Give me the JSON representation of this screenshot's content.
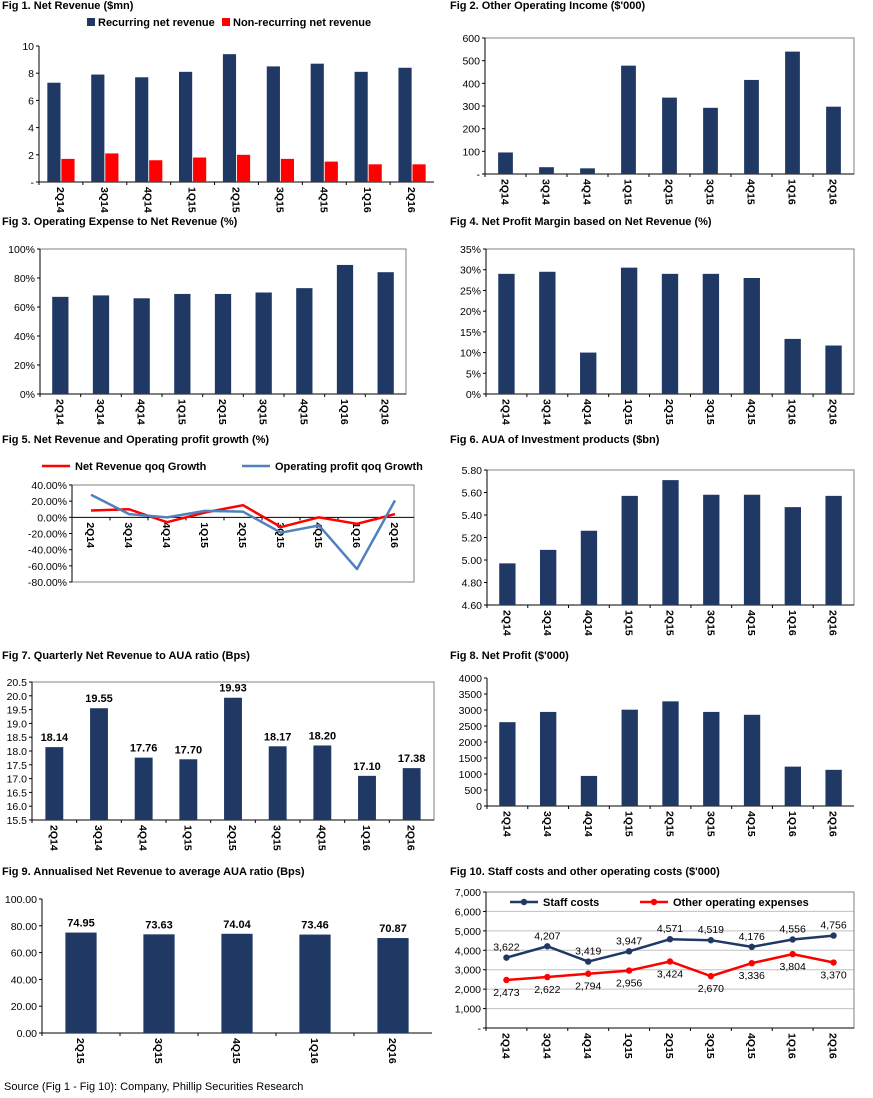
{
  "charts": [
    {
      "title": "Fig 1. Net Revenue ($mn)",
      "chart_data": {
        "type": "bar",
        "categories": [
          "2Q14",
          "3Q14",
          "4Q14",
          "1Q15",
          "2Q15",
          "3Q15",
          "4Q15",
          "1Q16",
          "2Q16"
        ],
        "series": [
          {
            "name": "Recurring net revenue",
            "values": [
              7.3,
              7.9,
              7.7,
              8.1,
              9.4,
              8.5,
              8.7,
              8.1,
              8.4
            ],
            "color": "#1f3864"
          },
          {
            "name": "Non-recurring net revenue",
            "values": [
              1.7,
              2.1,
              1.6,
              1.8,
              2.0,
              1.7,
              1.5,
              1.3,
              1.3
            ],
            "color": "#ff0000"
          }
        ],
        "ylim": [
          0,
          10
        ],
        "yticks": [
          "-",
          "2",
          "4",
          "6",
          "8",
          "10"
        ],
        "legend": "top",
        "plot_border": false
      }
    },
    {
      "title": "Fig 2. Other Operating Income ($'000)",
      "chart_data": {
        "type": "bar",
        "categories": [
          "2Q14",
          "3Q14",
          "4Q14",
          "1Q15",
          "2Q15",
          "3Q15",
          "4Q15",
          "1Q16",
          "2Q16"
        ],
        "series": [
          {
            "values": [
              95,
              30,
              25,
              478,
              337,
              292,
              415,
              540,
              297
            ],
            "color": "#1f3864"
          }
        ],
        "ylim": [
          0,
          600
        ],
        "yticks": [
          "-",
          "100",
          "200",
          "300",
          "400",
          "500",
          "600"
        ],
        "plot_border": true
      }
    },
    {
      "title": "Fig 3. Operating Expense to Net Revenue (%)",
      "chart_data": {
        "type": "bar",
        "categories": [
          "2Q14",
          "3Q14",
          "4Q14",
          "1Q15",
          "2Q15",
          "3Q15",
          "4Q15",
          "1Q16",
          "2Q16"
        ],
        "series": [
          {
            "values": [
              67,
              68,
              66,
              69,
              69,
              70,
              73,
              89,
              84
            ],
            "color": "#1f3864"
          }
        ],
        "ylim": [
          0,
          100
        ],
        "yticks": [
          "0%",
          "20%",
          "40%",
          "60%",
          "80%",
          "100%"
        ],
        "plot_border": true
      }
    },
    {
      "title": "Fig 4. Net Profit Margin based on Net Revenue (%)",
      "chart_data": {
        "type": "bar",
        "categories": [
          "2Q14",
          "3Q14",
          "4Q14",
          "1Q15",
          "2Q15",
          "3Q15",
          "4Q15",
          "1Q16",
          "2Q16"
        ],
        "series": [
          {
            "values": [
              29,
              29.5,
              10,
              30.5,
              29,
              29,
              28,
              13.3,
              11.7
            ],
            "color": "#1f3864"
          }
        ],
        "ylim": [
          0,
          35
        ],
        "yticks": [
          "0%",
          "5%",
          "10%",
          "15%",
          "20%",
          "25%",
          "30%",
          "35%"
        ],
        "plot_border": true
      }
    },
    {
      "title": "Fig 5. Net Revenue and Operating profit growth (%)",
      "chart_data": {
        "type": "line",
        "categories": [
          "2Q14",
          "3Q14",
          "4Q14",
          "1Q15",
          "2Q15",
          "3Q15",
          "4Q15",
          "1Q16",
          "2Q16"
        ],
        "series": [
          {
            "name": "Net Revenue qoq Growth",
            "values": [
              8.5,
              10,
              -6,
              6,
              15,
              -12,
              0,
              -8,
              4
            ],
            "color": "#ff0000"
          },
          {
            "name": "Operating profit qoq Growth",
            "values": [
              28,
              4,
              0,
              8,
              7,
              -19,
              -10,
              -64,
              21
            ],
            "color": "#4f81bd"
          }
        ],
        "ylim": [
          -80,
          40
        ],
        "yticks": [
          "-80.00%",
          "-60.00%",
          "-40.00%",
          "-20.00%",
          "0.00%",
          "20.00%",
          "40.00%"
        ],
        "legend": "top",
        "plot_border": true
      }
    },
    {
      "title": "Fig 6. AUA of Investment products ($bn)",
      "chart_data": {
        "type": "bar",
        "categories": [
          "2Q14",
          "3Q14",
          "4Q14",
          "1Q15",
          "2Q15",
          "3Q15",
          "4Q15",
          "1Q16",
          "2Q16"
        ],
        "series": [
          {
            "values": [
              4.97,
              5.09,
              5.26,
              5.57,
              5.71,
              5.58,
              5.58,
              5.47,
              5.57
            ],
            "color": "#1f3864"
          }
        ],
        "ylim": [
          4.6,
          5.8
        ],
        "yticks": [
          "4.60",
          "4.80",
          "5.00",
          "5.20",
          "5.40",
          "5.60",
          "5.80"
        ],
        "plot_border": true
      }
    },
    {
      "title": "Fig 7. Quarterly Net Revenue to AUA ratio (Bps)",
      "chart_data": {
        "type": "bar",
        "categories": [
          "2Q14",
          "3Q14",
          "4Q14",
          "1Q15",
          "2Q15",
          "3Q15",
          "4Q15",
          "1Q16",
          "2Q16"
        ],
        "series": [
          {
            "values": [
              18.14,
              19.55,
              17.76,
              17.7,
              19.93,
              18.17,
              18.2,
              17.1,
              17.38
            ],
            "color": "#1f3864"
          }
        ],
        "data_labels": [
          "18.14",
          "19.55",
          "17.76",
          "17.70",
          "19.93",
          "18.17",
          "18.20",
          "17.10",
          "17.38"
        ],
        "ylim": [
          15.5,
          20.5
        ],
        "yticks": [
          "15.5",
          "16.0",
          "16.5",
          "17.0",
          "17.5",
          "18.0",
          "18.5",
          "19.0",
          "19.5",
          "20.0",
          "20.5"
        ],
        "plot_border": true
      }
    },
    {
      "title": "Fig 8. Net Profit ($'000)",
      "chart_data": {
        "type": "bar",
        "categories": [
          "2Q14",
          "3Q14",
          "4Q14",
          "1Q15",
          "2Q15",
          "3Q15",
          "4Q15",
          "1Q16",
          "2Q16"
        ],
        "series": [
          {
            "values": [
              2620,
              2940,
              940,
              3010,
              3270,
              2940,
              2850,
              1230,
              1130
            ],
            "color": "#1f3864"
          }
        ],
        "ylim": [
          0,
          4000
        ],
        "yticks": [
          "0",
          "500",
          "1000",
          "1500",
          "2000",
          "2500",
          "3000",
          "3500",
          "4000"
        ],
        "plot_border": false
      }
    },
    {
      "title": "Fig 9. Annualised Net Revenue to average AUA ratio (Bps)",
      "chart_data": {
        "type": "bar",
        "categories": [
          "2Q15",
          "3Q15",
          "4Q15",
          "1Q16",
          "2Q16"
        ],
        "series": [
          {
            "values": [
              74.95,
              73.63,
              74.04,
              73.46,
              70.87
            ],
            "color": "#1f3864"
          }
        ],
        "data_labels": [
          "74.95",
          "73.63",
          "74.04",
          "73.46",
          "70.87"
        ],
        "ylim": [
          0,
          100
        ],
        "yticks": [
          "0.00",
          "20.00",
          "40.00",
          "60.00",
          "80.00",
          "100.00"
        ],
        "plot_border": false
      }
    },
    {
      "title": "Fig 10. Staff costs and other operating costs ($'000)",
      "chart_data": {
        "type": "line",
        "categories": [
          "2Q14",
          "3Q14",
          "4Q14",
          "1Q15",
          "2Q15",
          "3Q15",
          "4Q15",
          "1Q16",
          "2Q16"
        ],
        "series": [
          {
            "name": "Staff costs",
            "values": [
              3622,
              4207,
              3419,
              3947,
              4571,
              4519,
              4176,
              4556,
              4756
            ],
            "color": "#1f3864",
            "data_labels": [
              "3,622",
              "4,207",
              "3,419",
              "3,947",
              "4,571",
              "4,519",
              "4,176",
              "4,556",
              "4,756"
            ]
          },
          {
            "name": "Other operating expenses",
            "values": [
              2473,
              2622,
              2794,
              2956,
              3424,
              2670,
              3336,
              3804,
              3370
            ],
            "color": "#ff0000",
            "data_labels": [
              "2,473",
              "2,622",
              "2,794",
              "2,956",
              "3,424",
              "2,670",
              "3,336",
              "3,804",
              "3,370"
            ]
          }
        ],
        "ylim": [
          0,
          7000
        ],
        "yticks": [
          "-",
          "1,000",
          "2,000",
          "3,000",
          "4,000",
          "5,000",
          "6,000",
          "7,000"
        ],
        "legend": "top",
        "grid": true,
        "plot_border": true
      }
    }
  ],
  "source": "Source (Fig 1 - Fig 10): Company, Phillip Securities Research"
}
